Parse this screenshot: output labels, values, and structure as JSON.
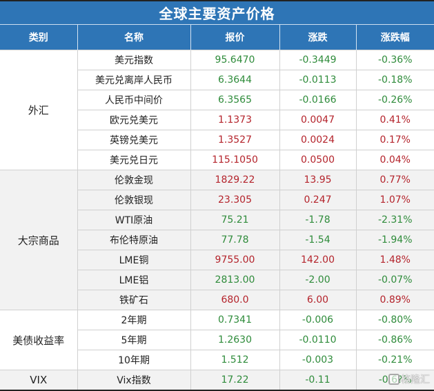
{
  "title": "全球主要资产价格",
  "headers": [
    "类别",
    "名称",
    "报价",
    "涨跌",
    "涨跌幅"
  ],
  "colors": {
    "header_bg": "#2e75b6",
    "up": "#b4232b",
    "down": "#2e8b3a",
    "alt_bg": "#f2f2f2"
  },
  "groups": [
    {
      "category": "外汇",
      "rows": [
        {
          "name": "美元指数",
          "price": "95.6470",
          "change": "-0.3449",
          "pct": "-0.36%",
          "dir": "down"
        },
        {
          "name": "美元兑离岸人民币",
          "price": "6.3644",
          "change": "-0.0113",
          "pct": "-0.18%",
          "dir": "down"
        },
        {
          "name": "人民币中间价",
          "price": "6.3565",
          "change": "-0.0166",
          "pct": "-0.26%",
          "dir": "down"
        },
        {
          "name": "欧元兑美元",
          "price": "1.1373",
          "change": "0.0047",
          "pct": "0.41%",
          "dir": "up"
        },
        {
          "name": "英镑兑美元",
          "price": "1.3527",
          "change": "0.0024",
          "pct": "0.17%",
          "dir": "up"
        },
        {
          "name": "美元兑日元",
          "price": "115.1050",
          "change": "0.0500",
          "pct": "0.04%",
          "dir": "up"
        }
      ]
    },
    {
      "category": "大宗商品",
      "rows": [
        {
          "name": "伦敦金现",
          "price": "1829.22",
          "change": "13.95",
          "pct": "0.77%",
          "dir": "up"
        },
        {
          "name": "伦敦银现",
          "price": "23.305",
          "change": "0.247",
          "pct": "1.07%",
          "dir": "up"
        },
        {
          "name": "WTI原油",
          "price": "75.21",
          "change": "-1.78",
          "pct": "-2.31%",
          "dir": "down"
        },
        {
          "name": "布伦特原油",
          "price": "77.78",
          "change": "-1.54",
          "pct": "-1.94%",
          "dir": "down"
        },
        {
          "name": "LME铜",
          "price": "9755.00",
          "change": "142.00",
          "pct": "1.48%",
          "dir": "up"
        },
        {
          "name": "LME铝",
          "price": "2813.00",
          "change": "-2.00",
          "pct": "-0.07%",
          "dir": "down"
        },
        {
          "name": "铁矿石",
          "price": "680.0",
          "change": "6.00",
          "pct": "0.89%",
          "dir": "up"
        }
      ]
    },
    {
      "category": "美债收益率",
      "rows": [
        {
          "name": "2年期",
          "price": "0.7341",
          "change": "-0.006",
          "pct": "-0.80%",
          "dir": "down"
        },
        {
          "name": "5年期",
          "price": "1.2630",
          "change": "-0.0110",
          "pct": "-0.86%",
          "dir": "down"
        },
        {
          "name": "10年期",
          "price": "1.512",
          "change": "-0.003",
          "pct": "-0.21%",
          "dir": "down"
        }
      ]
    },
    {
      "category": "VIX",
      "rows": [
        {
          "name": "Vix指数",
          "price": "17.22",
          "change": "-0.11",
          "pct": "-0.6?%",
          "dir": "down"
        }
      ]
    }
  ],
  "watermark": "格隆汇"
}
